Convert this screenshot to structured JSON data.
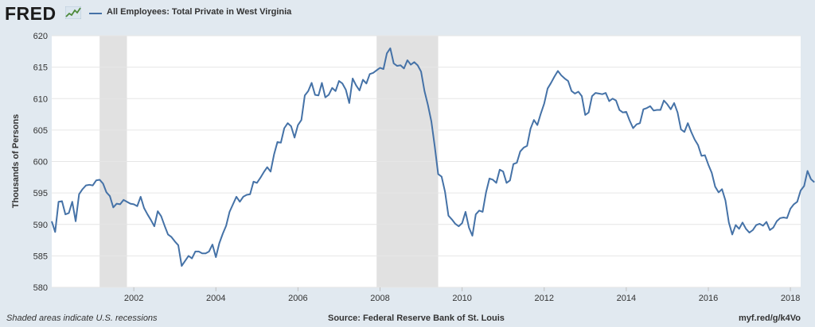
{
  "header": {
    "logo_text": "FRED",
    "series_title": "All Employees: Total Private in West Virginia"
  },
  "footer": {
    "recession_note": "Shaded areas indicate U.S. recessions",
    "source": "Source: Federal Reserve Bank of St. Louis",
    "link": "myf.red/g/k4Vo"
  },
  "colors": {
    "line": "#4572a7",
    "plot_background": "#ffffff",
    "page_background": "#e1e9f0",
    "recession_shade": "#e1e1e1",
    "grid": "#e6e6e6"
  },
  "icons": [
    "fred-logo-chart-icon"
  ],
  "chart_data": {
    "type": "line",
    "title": "All Employees: Total Private in West Virginia",
    "xlabel": "",
    "ylabel": "Thousands of Persons",
    "ylim": [
      580,
      620
    ],
    "xlim": [
      "2000-01",
      "2018-04"
    ],
    "yticks": [
      580,
      585,
      590,
      595,
      600,
      605,
      610,
      615,
      620
    ],
    "xticks": [
      "2002",
      "2004",
      "2006",
      "2008",
      "2010",
      "2012",
      "2014",
      "2016",
      "2018"
    ],
    "grid": "horizontal",
    "recessions": [
      {
        "start": "2001-03",
        "end": "2001-11"
      },
      {
        "start": "2007-12",
        "end": "2009-06"
      }
    ],
    "series": [
      {
        "name": "All Employees: Total Private in West Virginia",
        "start": "2000-01",
        "frequency": "monthly",
        "values": [
          590.5,
          588.8,
          593.6,
          593.7,
          591.6,
          591.8,
          593.6,
          590.5,
          594.8,
          595.6,
          596.2,
          596.3,
          596.2,
          597.0,
          597.1,
          596.5,
          595.1,
          594.5,
          592.7,
          593.3,
          593.2,
          593.9,
          593.6,
          593.3,
          593.2,
          592.9,
          594.4,
          592.6,
          591.6,
          590.7,
          589.7,
          592.1,
          591.3,
          589.8,
          588.4,
          588.0,
          587.3,
          586.7,
          583.4,
          584.2,
          585.0,
          584.6,
          585.7,
          585.7,
          585.4,
          585.4,
          585.7,
          586.8,
          584.8,
          587.0,
          588.5,
          589.8,
          592.0,
          593.2,
          594.4,
          593.6,
          594.4,
          594.7,
          594.8,
          596.8,
          596.6,
          597.4,
          598.3,
          599.1,
          598.4,
          601.1,
          603.1,
          603.0,
          605.3,
          606.1,
          605.6,
          603.8,
          605.8,
          606.6,
          610.5,
          611.2,
          612.5,
          610.6,
          610.5,
          612.5,
          610.2,
          610.6,
          611.7,
          611.2,
          612.8,
          612.4,
          611.4,
          609.3,
          613.2,
          612.1,
          611.3,
          613.0,
          612.4,
          613.9,
          614.1,
          614.5,
          614.9,
          614.7,
          617.2,
          618.0,
          615.6,
          615.2,
          615.3,
          614.8,
          616.1,
          615.4,
          615.8,
          615.3,
          614.3,
          611.2,
          609.0,
          606.4,
          602.4,
          598.0,
          597.6,
          595.2,
          591.4,
          590.8,
          590.1,
          589.7,
          590.2,
          592.0,
          589.5,
          588.2,
          591.6,
          592.2,
          592.0,
          595.1,
          597.3,
          597.1,
          596.6,
          598.7,
          598.4,
          596.6,
          597.0,
          599.6,
          599.8,
          601.6,
          602.2,
          602.5,
          605.2,
          606.6,
          605.8,
          607.6,
          609.2,
          611.6,
          612.5,
          613.5,
          614.4,
          613.7,
          613.2,
          612.8,
          611.2,
          610.8,
          611.1,
          610.4,
          607.4,
          607.8,
          610.4,
          610.9,
          610.8,
          610.7,
          610.9,
          609.6,
          610.0,
          609.7,
          608.2,
          607.8,
          607.9,
          606.5,
          605.3,
          605.9,
          606.1,
          608.3,
          608.5,
          608.8,
          608.1,
          608.2,
          608.2,
          609.7,
          609.1,
          608.3,
          609.3,
          607.8,
          605.1,
          604.7,
          606.1,
          604.7,
          603.5,
          602.6,
          600.9,
          601.0,
          599.5,
          598.2,
          596.0,
          595.1,
          595.6,
          593.8,
          590.3,
          588.4,
          589.9,
          589.3,
          590.3,
          589.3,
          588.7,
          589.1,
          589.9,
          590.1,
          589.8,
          590.4,
          589.1,
          589.5,
          590.5,
          591.0,
          591.1,
          591.0,
          592.5,
          593.2,
          593.6,
          595.4,
          596.1,
          598.5,
          597.2,
          596.7
        ]
      }
    ]
  }
}
